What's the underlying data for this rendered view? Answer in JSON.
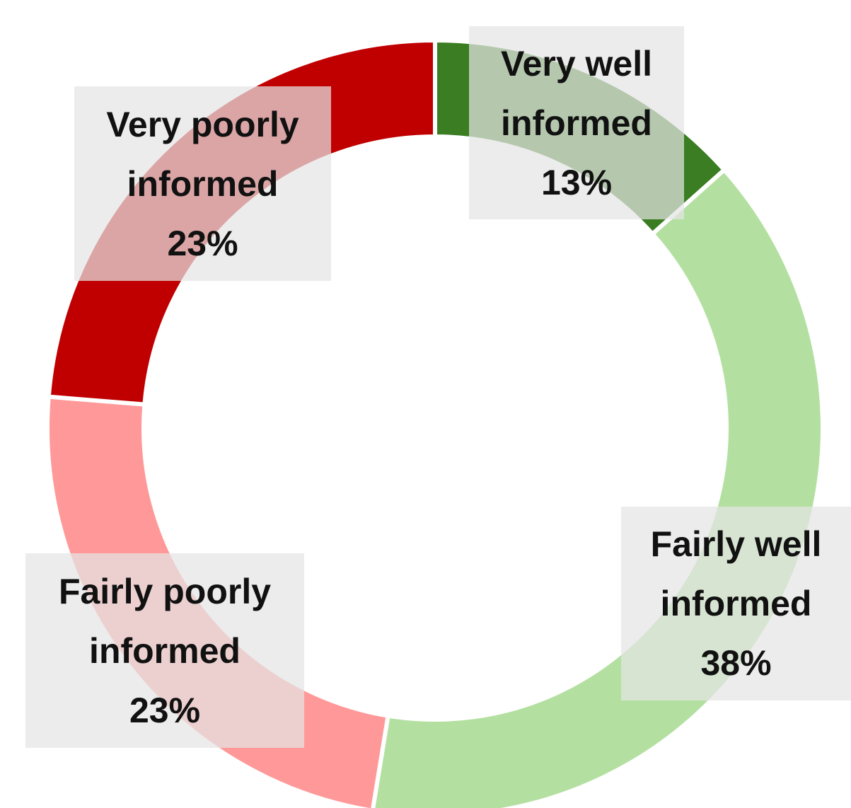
{
  "chart_data": {
    "type": "donut",
    "categories": [
      "Very well informed",
      "Fairly well informed",
      "Fairly poorly informed",
      "Very poorly informed"
    ],
    "values": [
      13,
      38,
      23,
      23
    ],
    "value_labels": [
      "13%",
      "38%",
      "23%",
      "23%"
    ],
    "colors": [
      "#3a7d22",
      "#b3e0a0",
      "#ff9999",
      "#c00000"
    ]
  }
}
